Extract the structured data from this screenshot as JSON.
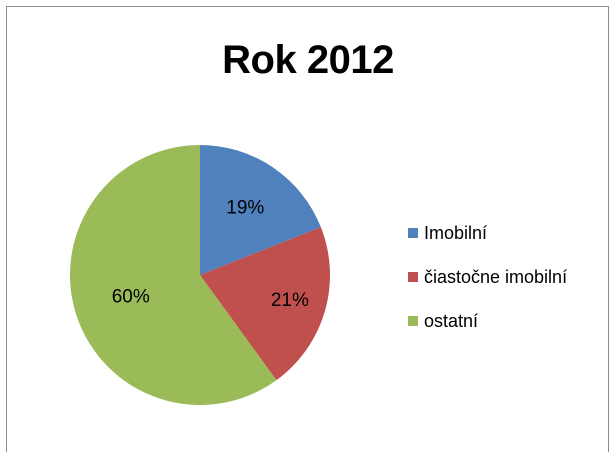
{
  "chart_data": {
    "type": "pie",
    "title": "Rok 2012",
    "categories": [
      "Imobilní",
      "čiastočne imobilní",
      "ostatní"
    ],
    "values": [
      19,
      21,
      60
    ],
    "value_labels": [
      "19%",
      "21%",
      "60%"
    ],
    "colors": [
      "#4f81bd",
      "#c0504d",
      "#9bbb59"
    ],
    "legend_position": "right"
  }
}
